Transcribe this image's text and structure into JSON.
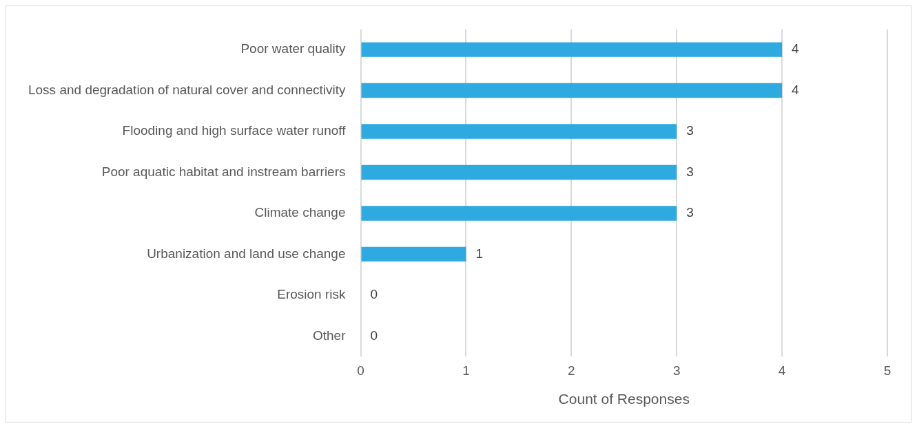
{
  "chart_data": {
    "type": "bar",
    "orientation": "horizontal",
    "xlabel": "Count of Responses",
    "categories": [
      "Poor water quality",
      "Loss and degradation of natural cover and connectivity",
      "Flooding and high surface water runoff",
      "Poor aquatic habitat and instream barriers",
      "Climate change",
      "Urbanization and land use change",
      "Erosion risk",
      "Other"
    ],
    "values": [
      4,
      4,
      3,
      3,
      3,
      1,
      0,
      0
    ],
    "color": "#2eaae1",
    "xlim": [
      0,
      5
    ],
    "xticks": [
      0,
      1,
      2,
      3,
      4,
      5
    ],
    "grid": "x",
    "data_labels": true,
    "legend": false
  }
}
